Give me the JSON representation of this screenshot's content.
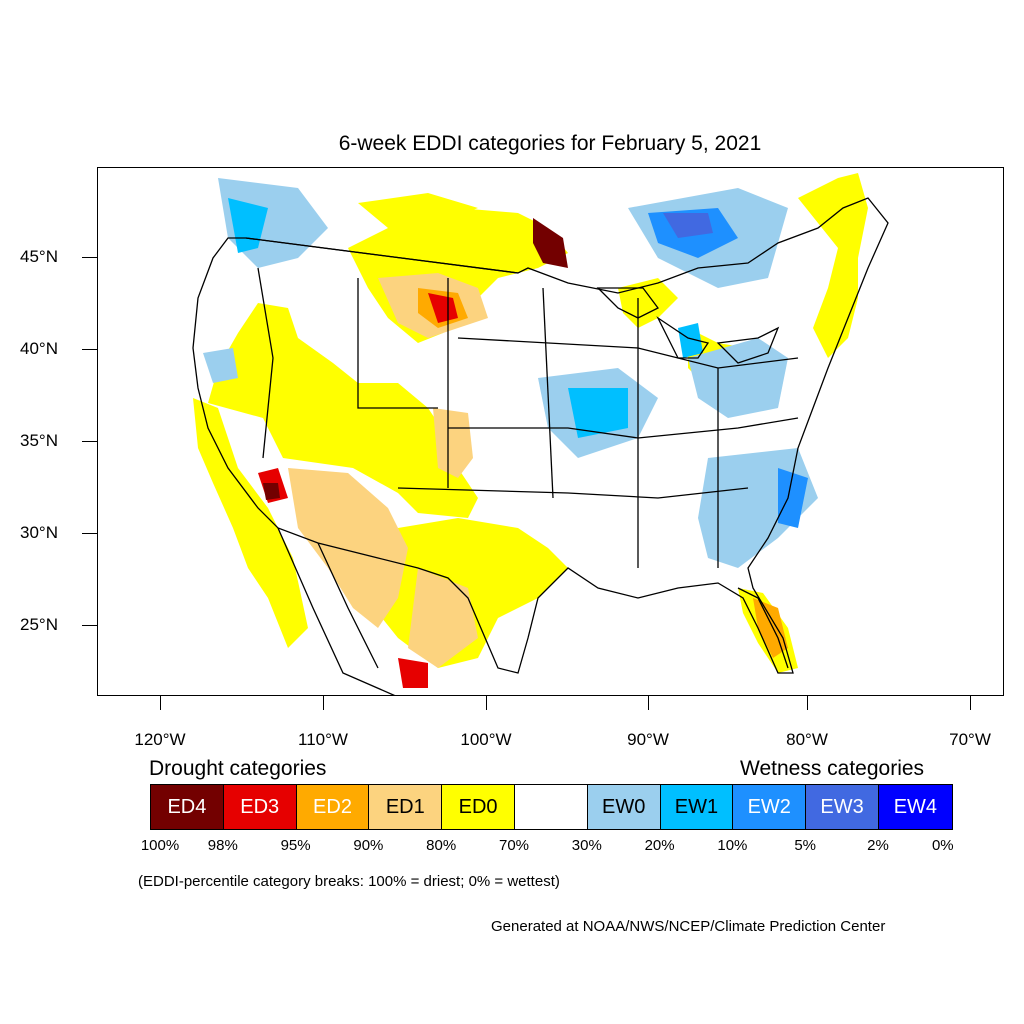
{
  "title": "6-week EDDI categories for February 5, 2021",
  "latitude_labels": [
    "45°N",
    "40°N",
    "35°N",
    "30°N",
    "25°N"
  ],
  "longitude_labels": [
    "120°W",
    "110°W",
    "100°W",
    "90°W",
    "80°W",
    "70°W"
  ],
  "legend": {
    "drought_heading": "Drought categories",
    "wetness_heading": "Wetness categories",
    "categories": [
      {
        "label": "ED4",
        "color": "#730000",
        "text_color": "#ffffff"
      },
      {
        "label": "ED3",
        "color": "#e60000",
        "text_color": "#ffffff"
      },
      {
        "label": "ED2",
        "color": "#ffaa00",
        "text_color": "#ffffff"
      },
      {
        "label": "ED1",
        "color": "#fcd37f",
        "text_color": "#000000"
      },
      {
        "label": "ED0",
        "color": "#ffff00",
        "text_color": "#000000"
      },
      {
        "label": "",
        "color": "#ffffff",
        "text_color": "#000000"
      },
      {
        "label": "EW0",
        "color": "#9bcfee",
        "text_color": "#000000"
      },
      {
        "label": "EW1",
        "color": "#00bfff",
        "text_color": "#000000"
      },
      {
        "label": "EW2",
        "color": "#1e90ff",
        "text_color": "#ffffff"
      },
      {
        "label": "EW3",
        "color": "#4169e1",
        "text_color": "#ffffff"
      },
      {
        "label": "EW4",
        "color": "#0000ff",
        "text_color": "#ffffff"
      }
    ],
    "breaks": [
      "100%",
      "98%",
      "95%",
      "90%",
      "80%",
      "70%",
      "30%",
      "20%",
      "10%",
      "5%",
      "2%",
      "0%"
    ]
  },
  "note": "(EDDI-percentile category breaks: 100% = driest; 0% = wettest)",
  "credit": "Generated at NOAA/NWS/NCEP/Climate Prediction Center"
}
